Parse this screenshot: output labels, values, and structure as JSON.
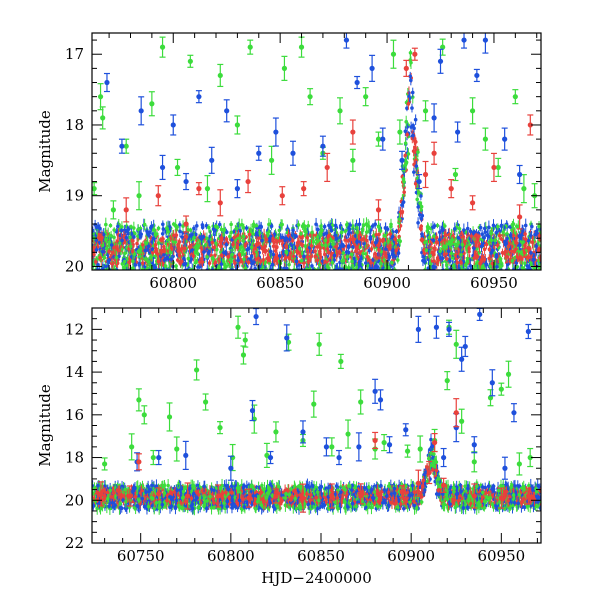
{
  "chart_data": [
    {
      "type": "scatter",
      "ylabel": "Magnitude",
      "xlabel": "",
      "xlim": [
        60762,
        60972
      ],
      "ylim": [
        20.05,
        16.7
      ],
      "y_inverted": true,
      "xticks": [
        60800,
        60850,
        60900,
        60950
      ],
      "yticks": [
        17,
        18,
        19,
        20
      ],
      "series": [
        {
          "color": "#3cdc3c",
          "values": [
            [
              60763,
              18.9
            ],
            [
              60766,
              17.6
            ],
            [
              60767,
              17.9
            ],
            [
              60772,
              19.2
            ],
            [
              60778,
              18.3
            ],
            [
              60784,
              19.0
            ],
            [
              60790,
              17.7
            ],
            [
              60795,
              16.9
            ],
            [
              60802,
              18.6
            ],
            [
              60808,
              17.1
            ],
            [
              60816,
              18.9
            ],
            [
              60822,
              17.3
            ],
            [
              60830,
              18.0
            ],
            [
              60836,
              16.9
            ],
            [
              60846,
              18.5
            ],
            [
              60852,
              17.2
            ],
            [
              60860,
              16.9
            ],
            [
              60864,
              17.6
            ],
            [
              60870,
              18.4
            ],
            [
              60878,
              17.8
            ],
            [
              60884,
              18.5
            ],
            [
              60890,
              17.6
            ],
            [
              60896,
              18.2
            ],
            [
              60903,
              17.0
            ],
            [
              60906,
              18.1
            ],
            [
              60918,
              17.8
            ],
            [
              60926,
              16.9
            ],
            [
              60932,
              18.7
            ],
            [
              60940,
              17.8
            ],
            [
              60946,
              18.2
            ],
            [
              60952,
              18.6
            ],
            [
              60960,
              17.6
            ],
            [
              60964,
              18.9
            ],
            [
              60969,
              19.0
            ]
          ]
        },
        {
          "color": "#1e50dc",
          "values": [
            [
              60769,
              17.4
            ],
            [
              60776,
              18.3
            ],
            [
              60785,
              17.8
            ],
            [
              60795,
              18.6
            ],
            [
              60800,
              18.0
            ],
            [
              60806,
              18.8
            ],
            [
              60812,
              17.6
            ],
            [
              60818,
              18.5
            ],
            [
              60825,
              17.8
            ],
            [
              60830,
              18.9
            ],
            [
              60840,
              18.4
            ],
            [
              60848,
              18.1
            ],
            [
              60856,
              18.4
            ],
            [
              60870,
              18.3
            ],
            [
              60881,
              16.8
            ],
            [
              60886,
              17.4
            ],
            [
              60893,
              17.2
            ],
            [
              60898,
              18.2
            ],
            [
              60907,
              18.5
            ],
            [
              60915,
              18.8
            ],
            [
              60922,
              17.9
            ],
            [
              60925,
              17.1
            ],
            [
              60933,
              18.1
            ],
            [
              60936,
              16.8
            ],
            [
              60942,
              17.3
            ],
            [
              60946,
              16.8
            ],
            [
              60955,
              18.2
            ],
            [
              60962,
              18.7
            ]
          ]
        },
        {
          "color": "#e8413c",
          "values": [
            [
              60778,
              19.2
            ],
            [
              60793,
              19.0
            ],
            [
              60806,
              19.4
            ],
            [
              60812,
              18.9
            ],
            [
              60822,
              19.1
            ],
            [
              60835,
              18.8
            ],
            [
              60851,
              19.0
            ],
            [
              60861,
              18.9
            ],
            [
              60872,
              18.6
            ],
            [
              60884,
              18.1
            ],
            [
              60896,
              19.2
            ],
            [
              60909,
              17.2
            ],
            [
              60913,
              17.0
            ],
            [
              60918,
              18.7
            ],
            [
              60922,
              18.4
            ],
            [
              60930,
              18.9
            ],
            [
              60940,
              19.1
            ],
            [
              60950,
              18.6
            ],
            [
              60962,
              19.3
            ],
            [
              60967,
              18.0
            ]
          ]
        }
      ]
    },
    {
      "type": "scatter",
      "ylabel": "Magnitude",
      "xlabel": "HJD−2400000",
      "xlim": [
        60723,
        60972
      ],
      "ylim": [
        22.0,
        11.0
      ],
      "y_inverted": true,
      "xticks": [
        60750,
        60800,
        60850,
        60900,
        60950
      ],
      "yticks": [
        12,
        14,
        16,
        18,
        20,
        22
      ],
      "series": [
        {
          "color": "#3cdc3c",
          "values": [
            [
              60730,
              18.3
            ],
            [
              60745,
              17.5
            ],
            [
              60749,
              15.3
            ],
            [
              60752,
              16.0
            ],
            [
              60757,
              18.0
            ],
            [
              60766,
              16.1
            ],
            [
              60770,
              17.6
            ],
            [
              60781,
              13.9
            ],
            [
              60786,
              15.4
            ],
            [
              60794,
              16.6
            ],
            [
              60801,
              18.0
            ],
            [
              60804,
              11.9
            ],
            [
              60807,
              13.2
            ],
            [
              60808,
              12.5
            ],
            [
              60813,
              16.2
            ],
            [
              60820,
              17.9
            ],
            [
              60825,
              16.8
            ],
            [
              60832,
              12.6
            ],
            [
              60840,
              17.2
            ],
            [
              60846,
              15.5
            ],
            [
              60849,
              12.7
            ],
            [
              60856,
              17.5
            ],
            [
              60861,
              13.5
            ],
            [
              60865,
              16.9
            ],
            [
              60872,
              15.4
            ],
            [
              60880,
              17.6
            ],
            [
              60885,
              17.3
            ],
            [
              60898,
              17.7
            ],
            [
              60905,
              17.6
            ],
            [
              60913,
              17.2
            ],
            [
              60920,
              14.4
            ],
            [
              60921,
              11.9
            ],
            [
              60925,
              12.7
            ],
            [
              60928,
              16.3
            ],
            [
              60935,
              18.2
            ],
            [
              60944,
              15.2
            ],
            [
              60950,
              14.8
            ],
            [
              60954,
              14.1
            ],
            [
              60960,
              18.3
            ],
            [
              60966,
              18.0
            ]
          ]
        },
        {
          "color": "#1e50dc",
          "values": [
            [
              60748,
              18.2
            ],
            [
              60760,
              18.0
            ],
            [
              60775,
              17.9
            ],
            [
              60800,
              18.5
            ],
            [
              60812,
              15.8
            ],
            [
              60814,
              11.4
            ],
            [
              60822,
              18.0
            ],
            [
              60831,
              12.4
            ],
            [
              60840,
              16.8
            ],
            [
              60853,
              17.5
            ],
            [
              60860,
              18.0
            ],
            [
              60871,
              17.5
            ],
            [
              60880,
              14.9
            ],
            [
              60883,
              15.3
            ],
            [
              60888,
              17.4
            ],
            [
              60897,
              16.7
            ],
            [
              60904,
              12.0
            ],
            [
              60914,
              11.9
            ],
            [
              60918,
              18.0
            ],
            [
              60921,
              12.0
            ],
            [
              60925,
              16.6
            ],
            [
              60928,
              13.4
            ],
            [
              60930,
              12.8
            ],
            [
              60935,
              17.4
            ],
            [
              60938,
              11.3
            ],
            [
              60945,
              14.5
            ],
            [
              60952,
              18.5
            ],
            [
              60957,
              15.9
            ],
            [
              60965,
              12.1
            ]
          ]
        },
        {
          "color": "#e8413c",
          "values": [
            [
              60728,
              19.7
            ],
            [
              60744,
              19.8
            ],
            [
              60749,
              18.2
            ],
            [
              60760,
              19.7
            ],
            [
              60776,
              19.8
            ],
            [
              60793,
              19.8
            ],
            [
              60810,
              19.9
            ],
            [
              60825,
              19.8
            ],
            [
              60840,
              19.9
            ],
            [
              60856,
              19.8
            ],
            [
              60872,
              19.7
            ],
            [
              60880,
              17.2
            ],
            [
              60895,
              19.6
            ],
            [
              60904,
              19.2
            ],
            [
              60910,
              18.7
            ],
            [
              60913,
              17.3
            ],
            [
              60918,
              19.3
            ],
            [
              60925,
              15.9
            ],
            [
              60935,
              19.8
            ],
            [
              60950,
              19.9
            ],
            [
              60965,
              19.8
            ]
          ]
        }
      ]
    }
  ]
}
